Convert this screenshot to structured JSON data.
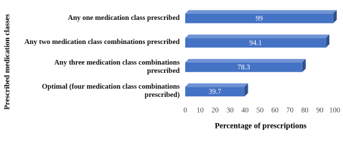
{
  "chart_data": {
    "type": "bar",
    "orientation": "horizontal",
    "y_label": "Prescribed medication classes",
    "x_label": "Percentage of prescriptions",
    "categories": [
      "Any one medication class prescribed",
      "Any two medication class combinations prescribed",
      "Any three medication class combinations prescribed",
      "Optimal (four medication class combinations prescribed)"
    ],
    "values": [
      99,
      94.1,
      78.3,
      39.7
    ],
    "color": "#4472c4",
    "xlim": [
      0,
      100
    ],
    "xticks": [
      0,
      10,
      20,
      30,
      40,
      50,
      60,
      70,
      80,
      90,
      100
    ]
  }
}
